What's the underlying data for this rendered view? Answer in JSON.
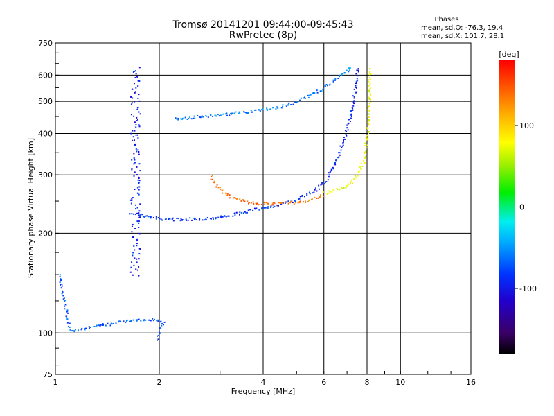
{
  "chart_data": {
    "type": "scatter",
    "title": "Tromsø 20141201 09:44:00-09:45:43",
    "subtitle": "RwPretec (8p)",
    "stats": {
      "heading": "Phases",
      "line_o": "mean, sd,O: -76.3, 19.4",
      "line_x": "mean, sd,X: 101.7, 28.1"
    },
    "xlabel": "Frequency [MHz]",
    "ylabel": "Stationary phase Virtual Height [km]",
    "x_scale": "log2",
    "y_scale": "log",
    "xlim": [
      1,
      16
    ],
    "ylim": [
      75,
      750
    ],
    "x_ticks": [
      {
        "value": 1,
        "label": "1"
      },
      {
        "value": 2,
        "label": "2"
      },
      {
        "value": 4,
        "label": "4"
      },
      {
        "value": 6,
        "label": "6"
      },
      {
        "value": 8,
        "label": "8"
      },
      {
        "value": 10,
        "label": "10"
      },
      {
        "value": 16,
        "label": "16"
      }
    ],
    "y_ticks": [
      {
        "value": 75,
        "label": "75"
      },
      {
        "value": 100,
        "label": "100"
      },
      {
        "value": 200,
        "label": "200"
      },
      {
        "value": 300,
        "label": "300"
      },
      {
        "value": 400,
        "label": "400"
      },
      {
        "value": 500,
        "label": "500"
      },
      {
        "value": 600,
        "label": "600"
      },
      {
        "value": 750,
        "label": "750"
      }
    ],
    "grid": true,
    "colorbar": {
      "label": "[deg]",
      "range": [
        -180,
        180
      ],
      "ticks": [
        {
          "value": 100,
          "label": "100"
        },
        {
          "value": 0,
          "label": "0"
        },
        {
          "value": -100,
          "label": "-100"
        }
      ],
      "colormap": "rainbow: black (-180) → purple → blue → cyan → green → yellow → orange → red (+180)"
    },
    "traces": [
      {
        "name": "o_low_band",
        "phase_deg": -85,
        "points": [
          [
            1.65,
            232
          ],
          [
            1.8,
            226
          ],
          [
            2.0,
            222
          ],
          [
            2.3,
            221
          ],
          [
            2.7,
            222
          ],
          [
            3.1,
            226
          ],
          [
            3.5,
            232
          ],
          [
            4.0,
            240
          ],
          [
            4.5,
            246
          ],
          [
            5.0,
            252
          ]
        ]
      },
      {
        "name": "o_upper_branch",
        "phase_deg": -90,
        "points": [
          [
            5.0,
            255
          ],
          [
            5.6,
            270
          ],
          [
            6.0,
            285
          ],
          [
            6.4,
            320
          ],
          [
            6.8,
            380
          ],
          [
            7.1,
            440
          ],
          [
            7.3,
            520
          ],
          [
            7.45,
            580
          ],
          [
            7.5,
            640
          ]
        ]
      },
      {
        "name": "x_low_arc",
        "phase_deg": 140,
        "points": [
          [
            2.8,
            300
          ],
          [
            3.0,
            270
          ],
          [
            3.3,
            255
          ],
          [
            3.7,
            248
          ],
          [
            4.2,
            246
          ],
          [
            4.8,
            248
          ],
          [
            5.4,
            252
          ],
          [
            6.0,
            262
          ]
        ]
      },
      {
        "name": "x_upper_branch",
        "phase_deg": 75,
        "points": [
          [
            6.0,
            265
          ],
          [
            6.8,
            275
          ],
          [
            7.3,
            290
          ],
          [
            7.8,
            330
          ],
          [
            8.0,
            400
          ],
          [
            8.1,
            500
          ],
          [
            8.1,
            600
          ],
          [
            8.15,
            640
          ]
        ]
      },
      {
        "name": "f1_upper_band",
        "phase_deg": -60,
        "points": [
          [
            2.2,
            445
          ],
          [
            2.7,
            452
          ],
          [
            3.2,
            460
          ],
          [
            3.8,
            470
          ],
          [
            4.3,
            480
          ],
          [
            4.9,
            495
          ],
          [
            5.5,
            525
          ],
          [
            6.1,
            560
          ],
          [
            6.7,
            600
          ],
          [
            7.2,
            640
          ]
        ]
      },
      {
        "name": "vertical_column_1p7",
        "phase_deg": -95,
        "points": [
          [
            1.7,
            150
          ],
          [
            1.7,
            200
          ],
          [
            1.7,
            300
          ],
          [
            1.7,
            400
          ],
          [
            1.7,
            500
          ],
          [
            1.7,
            640
          ]
        ]
      },
      {
        "name": "e_layer_traces",
        "phase_deg": -70,
        "points": [
          [
            1.02,
            150
          ],
          [
            1.1,
            102
          ],
          [
            1.6,
            109
          ],
          [
            1.9,
            110
          ],
          [
            2.05,
            109
          ],
          [
            1.95,
            95
          ]
        ]
      }
    ]
  }
}
